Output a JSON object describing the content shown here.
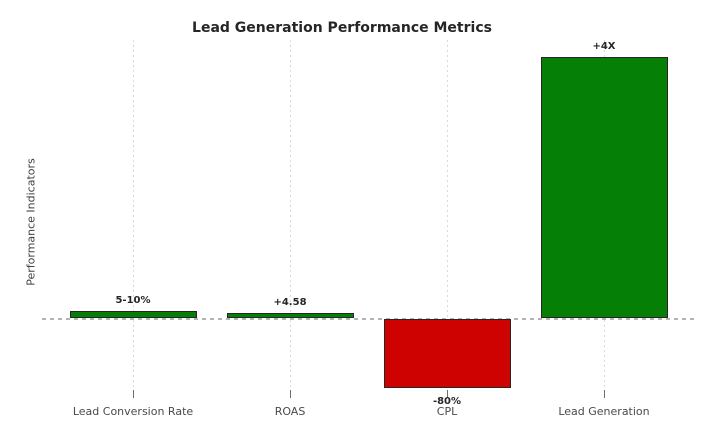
{
  "chart": {
    "title": "Lead Generation Performance Metrics",
    "ylabel": "Performance Indicators"
  },
  "chart_data": {
    "type": "bar",
    "title": "Lead Generation Performance Metrics",
    "xlabel": "",
    "ylabel": "Performance Indicators",
    "categories": [
      "Lead Conversion Rate",
      "ROAS",
      "CPL",
      "Lead Generation"
    ],
    "values": [
      0.11,
      0.08,
      -1.06,
      4.0
    ],
    "value_labels": [
      "5-10%",
      "+4.58",
      "-80%",
      "+4X"
    ],
    "bar_colors": [
      "#057f05",
      "#057f05",
      "#cf0202",
      "#057f05"
    ],
    "baseline": 0,
    "ylim": [
      -1.1,
      4.3
    ],
    "yticks": "none",
    "legend": "none",
    "grid": "vertical dotted gridlines at each category",
    "zero_line": "horizontal dashed gray line at y=0",
    "colors": {
      "positive_bar": "#057f05",
      "negative_bar": "#cf0202",
      "bar_edge": "#262626",
      "zero_line": "#b3b3b3",
      "gridline": "#d9d9d9",
      "tick": "#6e6e6e",
      "title_text": "#262626",
      "value_label_text": "#262626",
      "category_label_text": "#4a4a4a"
    }
  }
}
